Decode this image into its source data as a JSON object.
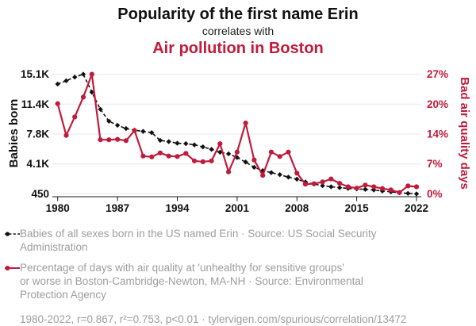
{
  "header": {
    "title": "Popularity of the first name Erin",
    "connector": "correlates with",
    "subtitle": "Air pollution in Boston"
  },
  "colors": {
    "series_black": "#111111",
    "series_red": "#C11B3C",
    "grid": "#e9e9e9",
    "axis": "#1a1a1a",
    "footer_gray": "#9d9d9d",
    "background": "#ffffff"
  },
  "chart_data": {
    "type": "line",
    "title": "Popularity of the first name Erin correlates with Air pollution in Boston",
    "x": [
      1980,
      1981,
      1982,
      1983,
      1984,
      1985,
      1986,
      1987,
      1988,
      1989,
      1990,
      1991,
      1992,
      1993,
      1994,
      1995,
      1996,
      1997,
      1998,
      1999,
      2000,
      2001,
      2002,
      2003,
      2004,
      2005,
      2006,
      2007,
      2008,
      2009,
      2010,
      2011,
      2012,
      2013,
      2014,
      2015,
      2016,
      2017,
      2018,
      2019,
      2020,
      2021,
      2022
    ],
    "series": [
      {
        "name": "Babies of all sexes born in the US named Erin",
        "axis": "left",
        "style": "dashed",
        "marker": "diamond",
        "values": [
          13900,
          14300,
          14750,
          15100,
          12900,
          10800,
          9350,
          8850,
          8450,
          8250,
          8100,
          7950,
          7000,
          6850,
          6650,
          6600,
          6450,
          6200,
          5900,
          5550,
          5350,
          4900,
          4350,
          3700,
          3300,
          3050,
          2800,
          2500,
          2250,
          1900,
          1650,
          1450,
          1320,
          1210,
          1120,
          1050,
          1000,
          920,
          800,
          700,
          580,
          510,
          450
        ]
      },
      {
        "name": "Percentage of days with air quality at 'unhealthy for sensitive groups' or worse in Boston-Cambridge-Newton, MA-NH",
        "axis": "right",
        "style": "solid",
        "marker": "circle",
        "values": [
          20.5,
          13.3,
          17.5,
          22.0,
          27.2,
          12.3,
          12.3,
          12.4,
          12.1,
          14.4,
          8.6,
          8.4,
          9.3,
          8.6,
          8.5,
          9.2,
          7.5,
          7.3,
          7.5,
          11.4,
          5.0,
          9.5,
          16.1,
          7.7,
          4.2,
          9.5,
          8.5,
          9.5,
          4.7,
          2.2,
          2.3,
          2.7,
          3.4,
          2.4,
          1.6,
          1.3,
          2.0,
          1.6,
          1.2,
          0.9,
          0.3,
          1.8,
          1.6
        ]
      }
    ],
    "left_axis": {
      "label": "Babies born",
      "tick_labels": [
        "15.1K",
        "11.4K",
        "7.8K",
        "4.1K",
        "450"
      ],
      "tick_values": [
        15100,
        11437.5,
        7775,
        4112.5,
        450
      ],
      "min": 450,
      "max": 15100
    },
    "right_axis": {
      "label": "Bad air quality days",
      "tick_labels": [
        "27%",
        "20%",
        "14%",
        "7%",
        "0%"
      ],
      "tick_values": [
        27.2,
        20.4,
        13.6,
        6.8,
        0
      ],
      "min": 0,
      "max": 27.2
    },
    "x_axis": {
      "tick_labels": [
        "1980",
        "1987",
        "1994",
        "2001",
        "2008",
        "2015",
        "2022"
      ],
      "tick_values": [
        1980,
        1987,
        1994,
        2001,
        2008,
        2015,
        2022
      ],
      "min": 1980,
      "max": 2022
    },
    "grid": "horizontal",
    "legend_position": "bottom"
  },
  "footer": {
    "legend": [
      {
        "marker": "black-dashed-dot",
        "lines": [
          "Babies of all sexes born in the US named Erin · Source: US Social Security",
          "Administration"
        ]
      },
      {
        "marker": "red-solid-dot",
        "lines": [
          "Percentage of days with air quality at 'unhealthy for sensitive groups'",
          "or worse in Boston-Cambridge-Newton, MA-NH · Source: Environmental",
          "Protection Agency"
        ]
      }
    ],
    "stats": "1980-2022, r=0.867, r²=0.753, p<0.01 · tylervigen.com/spurious/correlation/13472"
  }
}
